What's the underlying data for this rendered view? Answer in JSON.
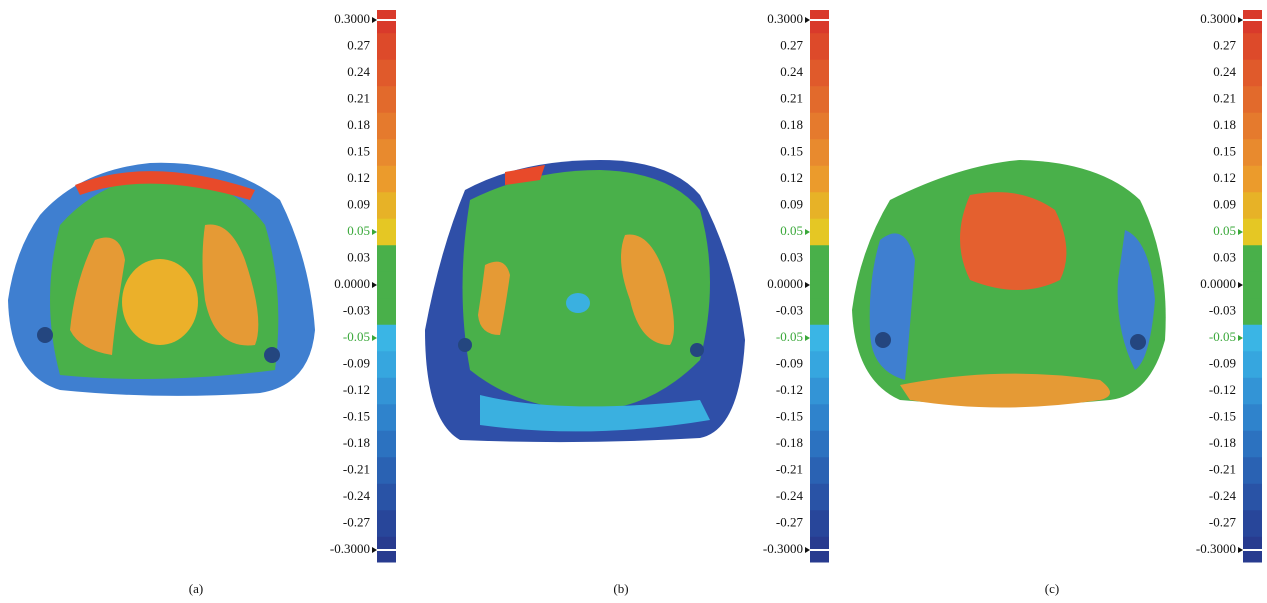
{
  "panels": [
    {
      "label": "(a)"
    },
    {
      "label": "(b)"
    },
    {
      "label": "(c)"
    }
  ],
  "scale": {
    "ticks": [
      "0.3000",
      "0.27",
      "0.24",
      "0.21",
      "0.18",
      "0.15",
      "0.12",
      "0.09",
      "0.05",
      "0.03",
      "0.0000",
      "-0.03",
      "-0.05",
      "-0.09",
      "-0.12",
      "-0.15",
      "-0.18",
      "-0.21",
      "-0.24",
      "-0.27",
      "-0.3000"
    ]
  }
}
